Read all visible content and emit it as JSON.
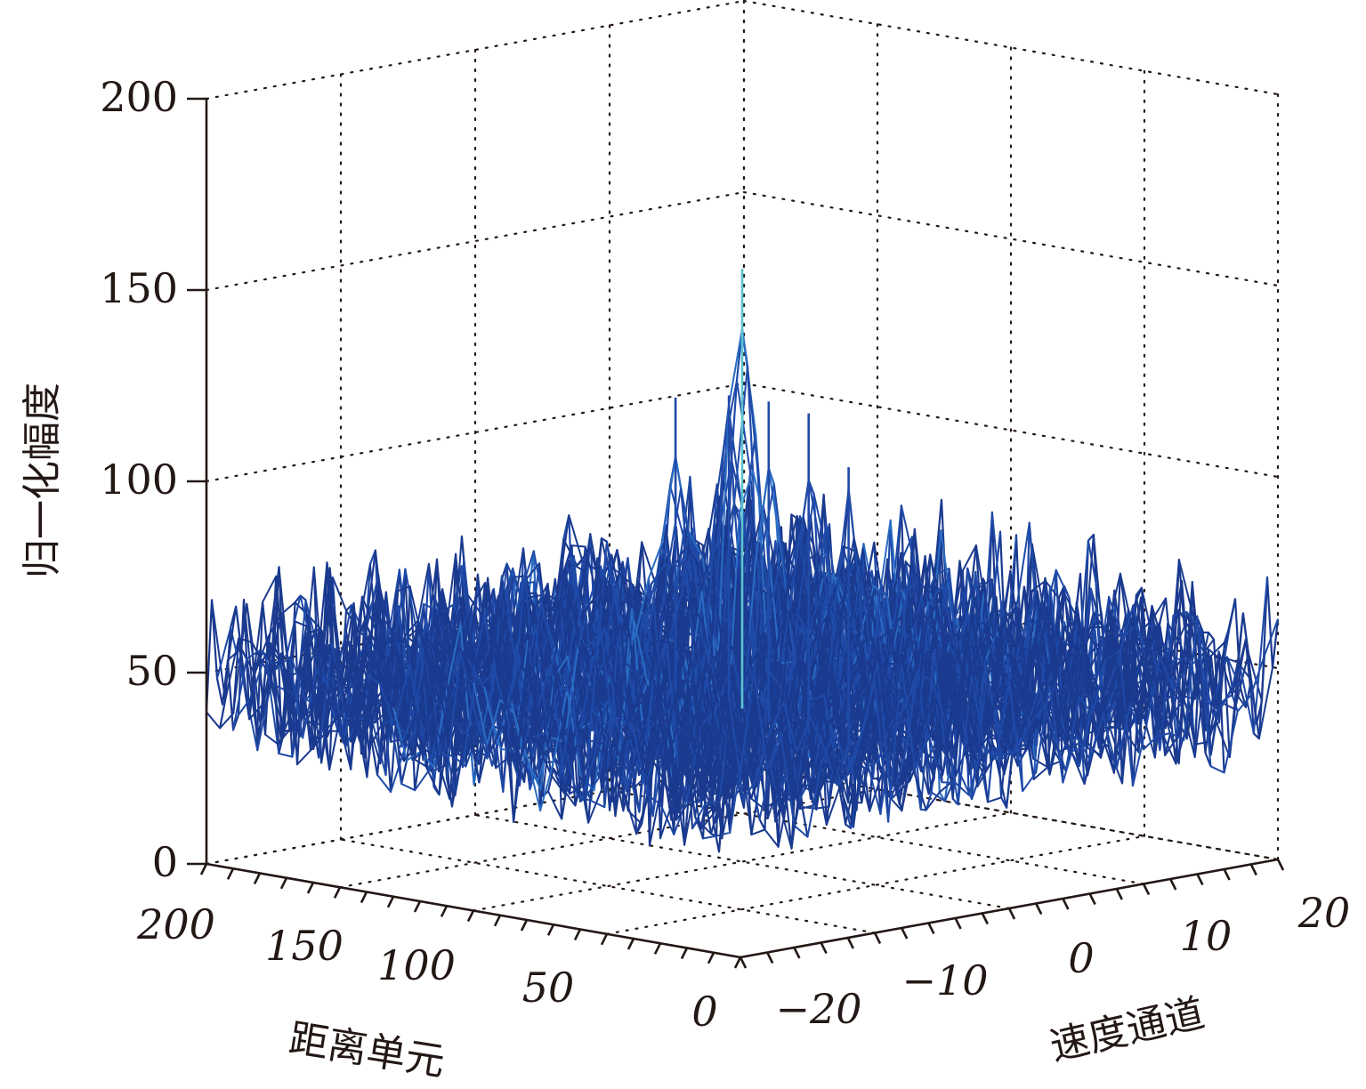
{
  "chart_data": {
    "type": "surface3d",
    "title": "",
    "xlabel": "距离单元",
    "ylabel": "速度通道",
    "zlabel": "归一化幅度",
    "xlim": [
      0,
      200
    ],
    "ylim": [
      -20,
      20
    ],
    "zlim": [
      0,
      200
    ],
    "x_ticks": [
      "200",
      "150",
      "100",
      "50",
      "0"
    ],
    "y_ticks": [
      "−20",
      "−10",
      "0",
      "10",
      "20"
    ],
    "z_ticks": [
      "0",
      "50",
      "100",
      "150",
      "200"
    ],
    "grid": true,
    "colormap": [
      "#1a3a8f",
      "#1f4aa8",
      "#2a6cc4",
      "#3fa0d8",
      "#5cc4cf",
      "#c8d84a",
      "#f08030",
      "#c0281e",
      "#7a0a10"
    ],
    "noise_floor_range": [
      10,
      65
    ],
    "peak": {
      "x": 100,
      "y": 0,
      "z": 155
    },
    "secondary_peaks": [
      {
        "x": 60,
        "y": -3,
        "z": 124
      },
      {
        "x": 80,
        "y": -2,
        "z": 124
      },
      {
        "x": 40,
        "y": -4,
        "z": 113
      },
      {
        "x": 110,
        "y": 1,
        "z": 120
      },
      {
        "x": 130,
        "y": 1,
        "z": 117
      }
    ]
  }
}
